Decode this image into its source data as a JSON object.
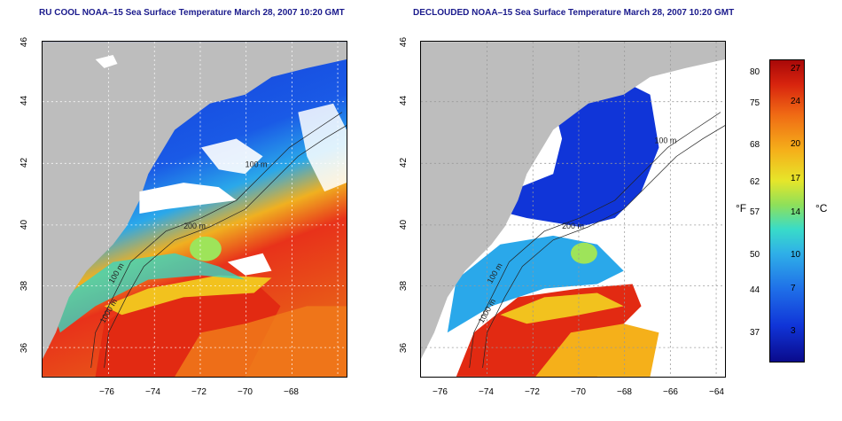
{
  "panels": [
    {
      "title": "RU COOL NOAA–15 Sea Surface Temperature March 28, 2007 10:20 GMT",
      "labels": {
        "d100": "100 m",
        "d200": "200 m",
        "d1000": "1000 m",
        "d100b": "100 m"
      }
    },
    {
      "title": "DECLOUDED NOAA–15 Sea Surface Temperature March 28, 2007 10:20 GMT",
      "labels": {
        "d100": "100 m",
        "d200": "200 m",
        "d1000": "1000 m",
        "d100b": "100 m"
      }
    }
  ],
  "axes": {
    "lon_ticks": [
      "−76",
      "−74",
      "−72",
      "−70",
      "−68",
      "−66",
      "−64"
    ],
    "lat_ticks": [
      "36",
      "38",
      "40",
      "42",
      "44",
      "46"
    ]
  },
  "colorbar": {
    "fahrenheit_label": "°F",
    "celsius_label": "°C",
    "fahrenheit_ticks": [
      "80",
      "75",
      "68",
      "62",
      "57",
      "50",
      "44",
      "37"
    ],
    "celsius_ticks": [
      "27",
      "24",
      "20",
      "17",
      "14",
      "10",
      "7",
      "3"
    ]
  },
  "colors": {
    "land": "#bdbdbd",
    "cloud": "#ffffff",
    "cold": "#1030d0",
    "warm": "#e0200c",
    "title": "#1a1a8c"
  }
}
